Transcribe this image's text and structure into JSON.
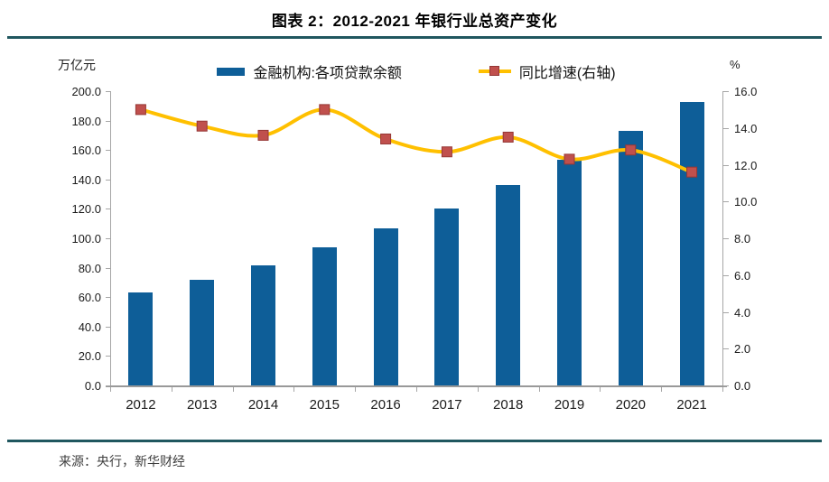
{
  "figure": {
    "title": "图表 2：2012-2021 年银行业总资产变化"
  },
  "footer": {
    "source": "来源：央行，新华财经"
  },
  "colors": {
    "accent_teal": "#20575F",
    "bar_blue": "#0E5E98",
    "line_yellow": "#FFC000",
    "marker_red": "#C0504D",
    "marker_border": "#953735",
    "axis_gray": "#A6A6A6"
  },
  "chart_data": {
    "type": "bar+line",
    "title": "图表 2：2012-2021 年银行业总资产变化",
    "categories": [
      "2012",
      "2013",
      "2014",
      "2015",
      "2016",
      "2017",
      "2018",
      "2019",
      "2020",
      "2021"
    ],
    "series": [
      {
        "name": "金融机构:各项贷款余额",
        "type": "bar",
        "axis": "left",
        "color": "#0E5E98",
        "values": [
          63.0,
          71.9,
          81.7,
          94.0,
          106.6,
          120.1,
          136.3,
          153.1,
          172.7,
          192.7
        ]
      },
      {
        "name": "同比增速(右轴)",
        "type": "line",
        "axis": "right",
        "color": "#FFC000",
        "marker_color": "#C0504D",
        "values": [
          15.0,
          14.1,
          13.6,
          15.0,
          13.4,
          12.7,
          13.5,
          12.3,
          12.8,
          11.6
        ]
      }
    ],
    "left_axis": {
      "unit": "万亿元",
      "min": 0,
      "max": 200,
      "step": 20
    },
    "right_axis": {
      "unit": "%",
      "min": 0,
      "max": 16,
      "step": 2
    },
    "legend_position": "top",
    "grid": false
  }
}
